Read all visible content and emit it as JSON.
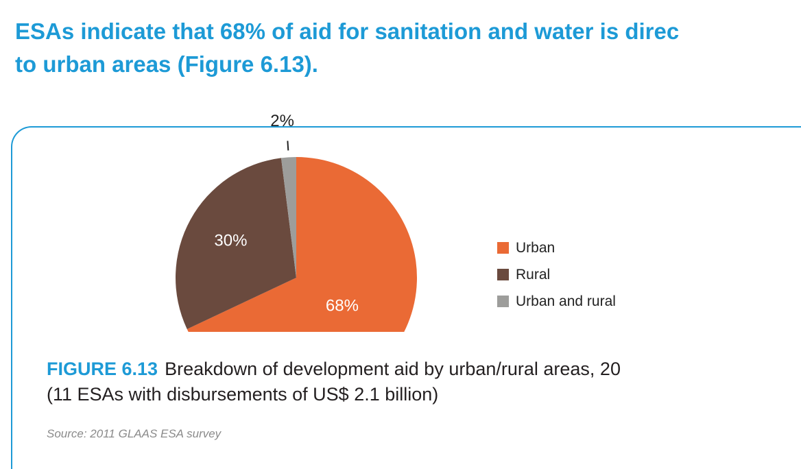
{
  "heading": {
    "line1": "ESAs indicate that 68% of aid for sanitation and water is direc",
    "line2": "to urban areas (Figure 6.13)."
  },
  "colors": {
    "heading": "#1d9ad6",
    "panel_border": "#1d9ad6",
    "figure_number": "#1d9ad6"
  },
  "chart_data": {
    "type": "pie",
    "title": "",
    "slices": [
      {
        "name": "Urban",
        "value": 68,
        "label": "68%",
        "color": "#ea6a35"
      },
      {
        "name": "Rural",
        "value": 30,
        "label": "30%",
        "color": "#6a4a3e"
      },
      {
        "name": "Urban and rural",
        "value": 2,
        "label": "2%",
        "color": "#9d9d9b"
      }
    ],
    "legend": [
      "Urban",
      "Rural",
      "Urban and rural"
    ],
    "legend_position": "right",
    "cropped": "bottom"
  },
  "caption": {
    "figure_number": "FIGURE 6.13",
    "line1": "Breakdown of development aid by urban/rural areas, 20",
    "line2": "(11 ESAs with disbursements of US$ 2.1 billion)"
  },
  "source": "Source: 2011 GLAAS ESA survey"
}
